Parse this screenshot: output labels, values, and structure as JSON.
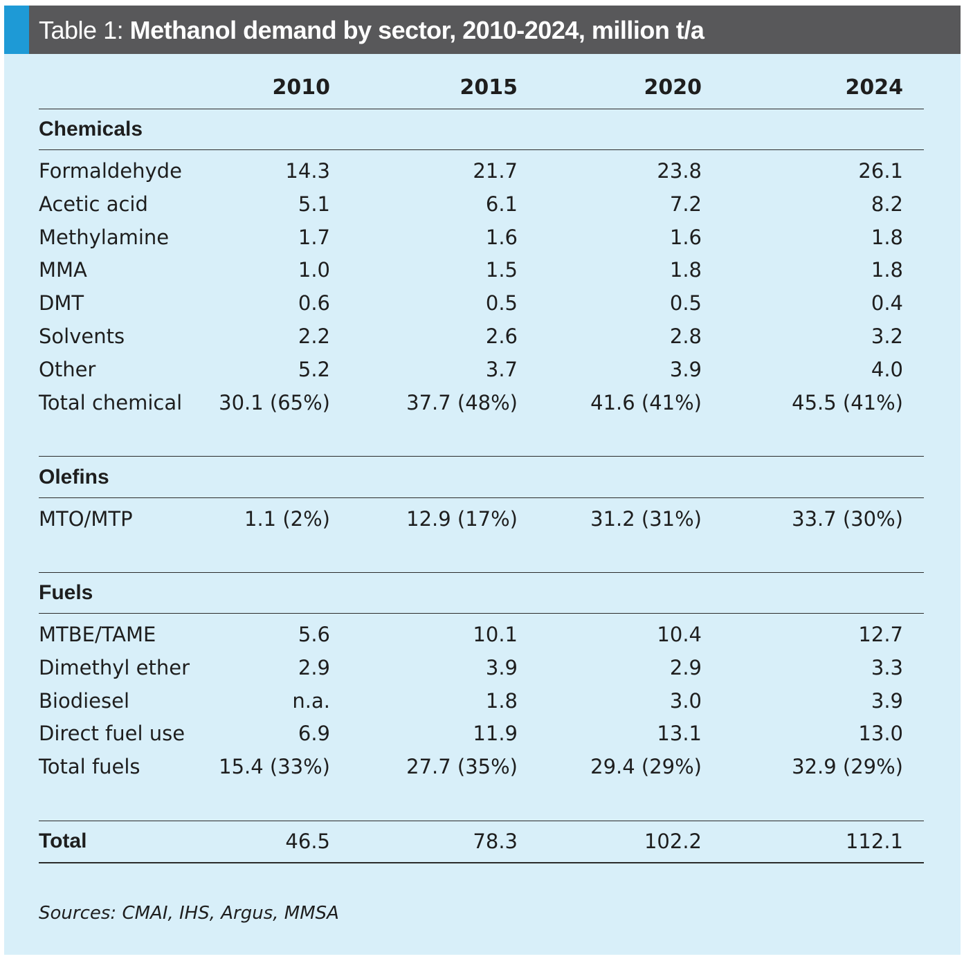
{
  "title": {
    "lead": "Table 1: ",
    "main": "Methanol demand by sector, 2010-2024, million t/a"
  },
  "colors": {
    "title_bar": "#58585a",
    "accent": "#1e9ad6",
    "panel_background": "#d8eff9"
  },
  "chart_data": {
    "type": "table",
    "title": "Table 1: Methanol demand by sector, 2010-2024, million t/a",
    "columns": [
      "2010",
      "2015",
      "2020",
      "2024"
    ],
    "sections": [
      {
        "name": "Chemicals",
        "rows": [
          {
            "label": "Formaldehyde",
            "values": [
              "14.3",
              "21.7",
              "23.8",
              "26.1"
            ]
          },
          {
            "label": "Acetic acid",
            "values": [
              "5.1",
              "6.1",
              "7.2",
              "8.2"
            ]
          },
          {
            "label": "Methylamine",
            "values": [
              "1.7",
              "1.6",
              "1.6",
              "1.8"
            ]
          },
          {
            "label": "MMA",
            "values": [
              "1.0",
              "1.5",
              "1.8",
              "1.8"
            ]
          },
          {
            "label": "DMT",
            "values": [
              "0.6",
              "0.5",
              "0.5",
              "0.4"
            ]
          },
          {
            "label": "Solvents",
            "values": [
              "2.2",
              "2.6",
              "2.8",
              "3.2"
            ]
          },
          {
            "label": "Other",
            "values": [
              "5.2",
              "3.7",
              "3.9",
              "4.0"
            ]
          },
          {
            "label": "Total chemical",
            "values": [
              "30.1 (65%)",
              "37.7 (48%)",
              "41.6 (41%)",
              "45.5 (41%)"
            ]
          }
        ]
      },
      {
        "name": "Olefins",
        "rows": [
          {
            "label": "MTO/MTP",
            "values": [
              "1.1 (2%)",
              "12.9 (17%)",
              "31.2 (31%)",
              "33.7 (30%)"
            ]
          }
        ]
      },
      {
        "name": "Fuels",
        "rows": [
          {
            "label": "MTBE/TAME",
            "values": [
              "5.6",
              "10.1",
              "10.4",
              "12.7"
            ]
          },
          {
            "label": "Dimethyl ether",
            "values": [
              "2.9",
              "3.9",
              "2.9",
              "3.3"
            ]
          },
          {
            "label": "Biodiesel",
            "values": [
              "n.a.",
              "1.8",
              "3.0",
              "3.9"
            ]
          },
          {
            "label": "Direct fuel use",
            "values": [
              "6.9",
              "11.9",
              "13.1",
              "13.0"
            ]
          },
          {
            "label": "Total fuels",
            "values": [
              "15.4 (33%)",
              "27.7 (35%)",
              "29.4 (29%)",
              "32.9 (29%)"
            ]
          }
        ]
      }
    ],
    "total": {
      "label": "Total",
      "values": [
        "46.5",
        "78.3",
        "102.2",
        "112.1"
      ]
    }
  },
  "source": "Sources: CMAI, IHS, Argus, MMSA"
}
